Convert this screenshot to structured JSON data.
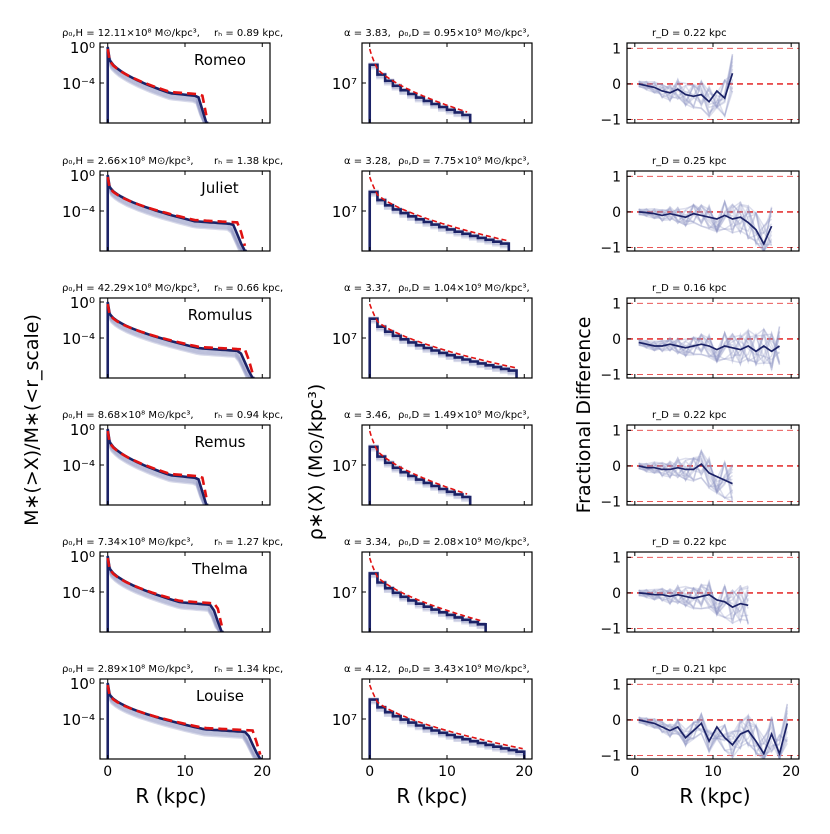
{
  "chart_data": {
    "type": "line",
    "title": "",
    "colors": {
      "profile": "#1b2266",
      "fit": "#e01212",
      "ensemble": "#8f96c4",
      "guide": "#e01212"
    },
    "xlabel": "R (kpc)",
    "ylabel_left": "M∗(>X)/M∗(<r_scale)",
    "ylabel_mid": "ρ∗(X) (M⊙/kpc³)",
    "ylabel_right": "Fractional Difference",
    "xticks": [
      0,
      10,
      20
    ],
    "xlim": [
      -1,
      21
    ],
    "left_yticks": [
      "10⁰",
      "10⁻⁴"
    ],
    "mid_ytick": "10⁷",
    "right_yticks": [
      1,
      0,
      -1
    ],
    "right_ylim": [
      -1.1,
      1.15
    ],
    "galaxies": [
      {
        "name": "Romeo",
        "rho0H": "ρ₀,H = 12.11×10⁸ M⊙/kpc³,",
        "rH": "rₕ = 0.89 kpc,",
        "alpha": "α = 3.83,",
        "rho0D": "ρ₀,D = 0.95×10⁹ M⊙/kpc³,",
        "rD": "r_D = 0.22 kpc",
        "rmax": 13,
        "diff_x": [
          0.5,
          1.5,
          2.5,
          3.5,
          4.5,
          5.5,
          6.5,
          7.5,
          8.5,
          9.5,
          10.5,
          11.5,
          12.5
        ],
        "diff_y": [
          0,
          -0.05,
          -0.1,
          -0.2,
          -0.25,
          -0.15,
          -0.3,
          -0.35,
          -0.3,
          -0.5,
          -0.2,
          -0.4,
          0.3
        ]
      },
      {
        "name": "Juliet",
        "rho0H": "ρ₀,H = 2.66×10⁸ M⊙/kpc³,",
        "rH": "rₕ = 1.38 kpc,",
        "alpha": "α = 3.28,",
        "rho0D": "ρ₀,D = 7.75×10⁹ M⊙/kpc³,",
        "rD": "r_D = 0.25 kpc",
        "rmax": 18,
        "diff_x": [
          0.5,
          1.5,
          2.5,
          3.5,
          4.5,
          5.5,
          6.5,
          7.5,
          8.5,
          9.5,
          10.5,
          11.5,
          12.5,
          13.5,
          14.5,
          15.5,
          16.5,
          17.5
        ],
        "diff_y": [
          0,
          -0.02,
          -0.05,
          -0.1,
          -0.05,
          -0.1,
          -0.15,
          -0.05,
          -0.1,
          -0.15,
          -0.2,
          -0.1,
          -0.2,
          -0.15,
          -0.3,
          -0.5,
          -0.9,
          -0.4
        ]
      },
      {
        "name": "Romulus",
        "rho0H": "ρ₀,H = 42.29×10⁸ M⊙/kpc³,",
        "rH": "rₕ = 0.66 kpc,",
        "alpha": "α = 3.37,",
        "rho0D": "ρ₀,D = 1.04×10⁹ M⊙/kpc³,",
        "rD": "r_D = 0.16 kpc",
        "rmax": 19,
        "diff_x": [
          0.5,
          1.5,
          2.5,
          3.5,
          4.5,
          5.5,
          6.5,
          7.5,
          8.5,
          9.5,
          10.5,
          11.5,
          12.5,
          13.5,
          14.5,
          15.5,
          16.5,
          17.5,
          18.5
        ],
        "diff_y": [
          -0.1,
          -0.15,
          -0.2,
          -0.2,
          -0.15,
          -0.2,
          -0.25,
          -0.2,
          -0.15,
          -0.2,
          -0.3,
          -0.2,
          -0.25,
          -0.3,
          -0.2,
          -0.35,
          -0.2,
          -0.35,
          -0.2
        ]
      },
      {
        "name": "Remus",
        "rho0H": "ρ₀,H = 8.68×10⁸ M⊙/kpc³,",
        "rH": "rₕ = 0.94 kpc,",
        "alpha": "α = 3.46,",
        "rho0D": "ρ₀,D = 1.49×10⁹ M⊙/kpc³,",
        "rD": "r_D = 0.22 kpc",
        "rmax": 13,
        "diff_x": [
          0.5,
          1.5,
          2.5,
          3.5,
          4.5,
          5.5,
          6.5,
          7.5,
          8.5,
          9.5,
          10.5,
          11.5,
          12.5
        ],
        "diff_y": [
          0,
          -0.05,
          -0.05,
          -0.1,
          -0.1,
          -0.05,
          -0.1,
          -0.1,
          0.05,
          -0.2,
          -0.3,
          -0.4,
          -0.5
        ]
      },
      {
        "name": "Thelma",
        "rho0H": "ρ₀,H = 7.34×10⁸ M⊙/kpc³,",
        "rH": "rₕ = 1.27 kpc,",
        "alpha": "α = 3.34,",
        "rho0D": "ρ₀,D = 2.08×10⁹ M⊙/kpc³,",
        "rD": "r_D = 0.22 kpc",
        "rmax": 15,
        "diff_x": [
          0.5,
          1.5,
          2.5,
          3.5,
          4.5,
          5.5,
          6.5,
          7.5,
          8.5,
          9.5,
          10.5,
          11.5,
          12.5,
          13.5,
          14.5
        ],
        "diff_y": [
          0,
          -0.02,
          -0.05,
          -0.05,
          -0.1,
          -0.05,
          -0.1,
          -0.15,
          -0.1,
          -0.05,
          -0.2,
          -0.25,
          -0.4,
          -0.3,
          -0.35
        ]
      },
      {
        "name": "Louise",
        "rho0H": "ρ₀,H = 2.89×10⁸ M⊙/kpc³,",
        "rH": "rₕ = 1.34 kpc,",
        "alpha": "α = 4.12,",
        "rho0D": "ρ₀,D = 3.43×10⁹ M⊙/kpc³,",
        "rD": "r_D = 0.21 kpc",
        "rmax": 20,
        "diff_x": [
          0.5,
          1.5,
          2.5,
          3.5,
          4.5,
          5.5,
          6.5,
          7.5,
          8.5,
          9.5,
          10.5,
          11.5,
          12.5,
          13.5,
          14.5,
          15.5,
          16.5,
          17.5,
          18.5,
          19.5
        ],
        "diff_y": [
          0,
          -0.05,
          -0.1,
          -0.2,
          -0.3,
          -0.2,
          -0.5,
          -0.3,
          -0.1,
          -0.6,
          -0.2,
          -0.5,
          -0.7,
          -0.4,
          -0.3,
          -0.6,
          -0.95,
          -0.4,
          -0.95,
          -0.1
        ]
      }
    ]
  }
}
